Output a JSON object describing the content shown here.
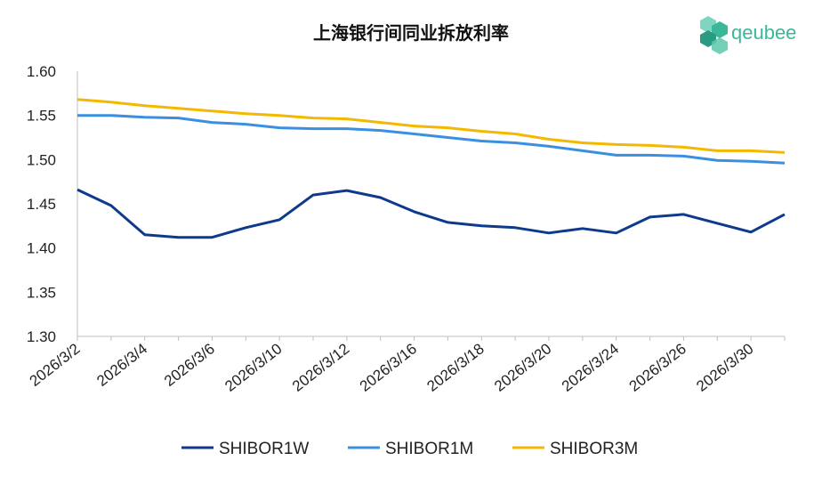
{
  "brand": {
    "name": "qeubee",
    "color": "#3bb89a"
  },
  "chart_data": {
    "type": "line",
    "title": "上海银行间同业拆放利率",
    "xlabel": "",
    "ylabel": "",
    "ylim": [
      1.3,
      1.6
    ],
    "yticks": [
      "1.30",
      "1.35",
      "1.40",
      "1.45",
      "1.50",
      "1.55",
      "1.60"
    ],
    "grid": false,
    "legend_position": "bottom",
    "x": [
      "2026/3/2",
      "2026/3/3",
      "2026/3/4",
      "2026/3/5",
      "2026/3/6",
      "2026/3/9",
      "2026/3/10",
      "2026/3/11",
      "2026/3/12",
      "2026/3/13",
      "2026/3/16",
      "2026/3/17",
      "2026/3/18",
      "2026/3/19",
      "2026/3/20",
      "2026/3/23",
      "2026/3/24",
      "2026/3/25",
      "2026/3/26",
      "2026/3/27",
      "2026/3/30",
      "2026/3/31"
    ],
    "xtick_labels": [
      "2026/3/2",
      "2026/3/4",
      "2026/3/6",
      "2026/3/10",
      "2026/3/12",
      "2026/3/16",
      "2026/3/18",
      "2026/3/20",
      "2026/3/24",
      "2026/3/26",
      "2026/3/30"
    ],
    "series": [
      {
        "name": "SHIBOR1W",
        "color": "#0d3a8c",
        "values": [
          1.466,
          1.448,
          1.415,
          1.412,
          1.412,
          1.423,
          1.432,
          1.46,
          1.465,
          1.457,
          1.441,
          1.429,
          1.425,
          1.423,
          1.417,
          1.422,
          1.417,
          1.435,
          1.438,
          1.428,
          1.418,
          1.438
        ]
      },
      {
        "name": "SHIBOR1M",
        "color": "#3b8fe0",
        "values": [
          1.55,
          1.55,
          1.548,
          1.547,
          1.542,
          1.54,
          1.536,
          1.535,
          1.535,
          1.533,
          1.529,
          1.525,
          1.521,
          1.519,
          1.515,
          1.51,
          1.505,
          1.505,
          1.504,
          1.499,
          1.498,
          1.496
        ]
      },
      {
        "name": "SHIBOR3M",
        "color": "#f5b800",
        "values": [
          1.568,
          1.565,
          1.561,
          1.558,
          1.555,
          1.552,
          1.55,
          1.547,
          1.546,
          1.542,
          1.538,
          1.536,
          1.532,
          1.529,
          1.523,
          1.519,
          1.517,
          1.516,
          1.514,
          1.51,
          1.51,
          1.508
        ]
      }
    ]
  }
}
